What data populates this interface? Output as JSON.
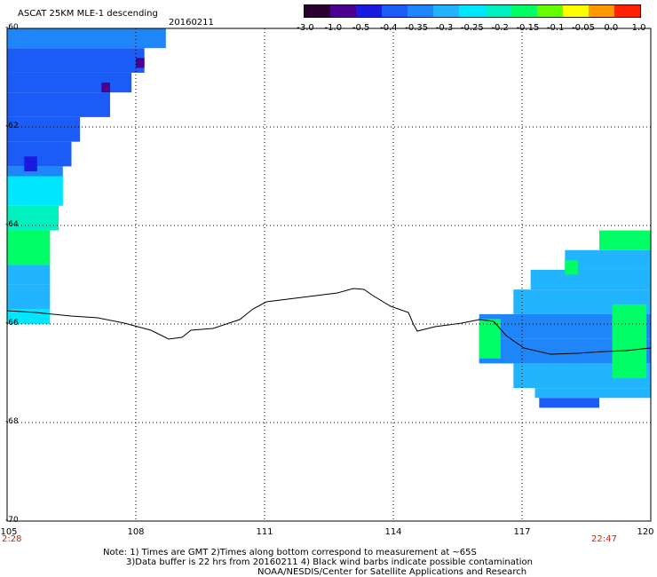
{
  "header": {
    "title": "ASCAT 25KM MLE-1 descending",
    "date": "20160211"
  },
  "colorbar": {
    "labels": [
      "-3.0",
      "-1.0",
      "-0.5",
      "-0.4",
      "-0.35",
      "-0.3",
      "-0.25",
      "-0.2",
      "-0.15",
      "-0.1",
      "-0.05",
      "0.0",
      "1.0"
    ],
    "colors": [
      "#2a0030",
      "#4b0090",
      "#1a1ae0",
      "#1a5cf5",
      "#1f86fa",
      "#22b4ff",
      "#00e6ff",
      "#00f0c0",
      "#00ff66",
      "#66ff00",
      "#ffff00",
      "#ff9900",
      "#ff2200"
    ]
  },
  "axes": {
    "lat_labels": [
      "-60",
      "-62",
      "-64",
      "-66",
      "-68",
      "-70"
    ],
    "lon_labels": [
      "105",
      "108",
      "111",
      "114",
      "117",
      "120"
    ],
    "lat_values": [
      -60,
      -62,
      -64,
      -66,
      -68,
      -70
    ],
    "lon_values": [
      105,
      108,
      111,
      114,
      117,
      120
    ]
  },
  "times": {
    "start": "2:28",
    "end": "22:47"
  },
  "notes": {
    "line1": "Note: 1) Times are GMT 2)Times along bottom correspond to measurement at ~65S",
    "line2": "3)Data buffer is 22 hrs from 20160211 4) Black wind barbs indicate possible contamination",
    "line3": "NOAA/NESDIS/Center for Satellite Applications and Research"
  }
}
